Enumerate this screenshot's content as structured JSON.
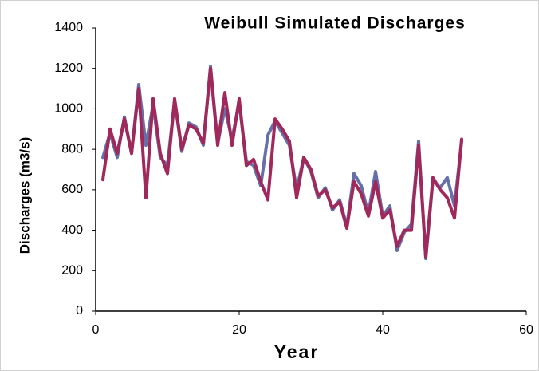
{
  "chart_data": {
    "type": "line",
    "title": "Weibull Simulated Discharges",
    "x_label": "Year",
    "y_label": "Discharges (m3/s)",
    "x": [
      1,
      2,
      3,
      4,
      5,
      6,
      7,
      8,
      9,
      10,
      11,
      12,
      13,
      14,
      15,
      16,
      17,
      18,
      19,
      20,
      21,
      22,
      23,
      24,
      25,
      26,
      27,
      28,
      29,
      30,
      31,
      32,
      33,
      34,
      35,
      36,
      37,
      38,
      39,
      40,
      41,
      42,
      43,
      44,
      45,
      46,
      47,
      48,
      49,
      50,
      51
    ],
    "series": [
      {
        "color": "#6670a8",
        "values": [
          760,
          880,
          760,
          960,
          780,
          1120,
          820,
          1020,
          760,
          720,
          1040,
          790,
          930,
          910,
          820,
          1210,
          830,
          1000,
          850,
          1030,
          740,
          720,
          620,
          870,
          940,
          880,
          820,
          600,
          760,
          690,
          560,
          610,
          500,
          550,
          420,
          680,
          620,
          480,
          690,
          470,
          520,
          300,
          390,
          430,
          840,
          260,
          650,
          610,
          660,
          520,
          840
        ]
      },
      {
        "color": "#a0285a",
        "values": [
          650,
          900,
          780,
          950,
          780,
          1100,
          560,
          1050,
          780,
          680,
          1050,
          800,
          920,
          900,
          830,
          1200,
          820,
          1080,
          820,
          1050,
          720,
          750,
          640,
          550,
          950,
          900,
          840,
          560,
          760,
          700,
          570,
          600,
          510,
          540,
          410,
          640,
          580,
          470,
          640,
          460,
          500,
          320,
          400,
          400,
          820,
          270,
          660,
          600,
          560,
          460,
          850
        ]
      }
    ],
    "xlim": [
      0,
      60
    ],
    "xticks": [
      0,
      20,
      40,
      60
    ],
    "ylim": [
      0,
      1400
    ],
    "yticks": [
      0,
      200,
      400,
      600,
      800,
      1000,
      1200,
      1400
    ]
  }
}
